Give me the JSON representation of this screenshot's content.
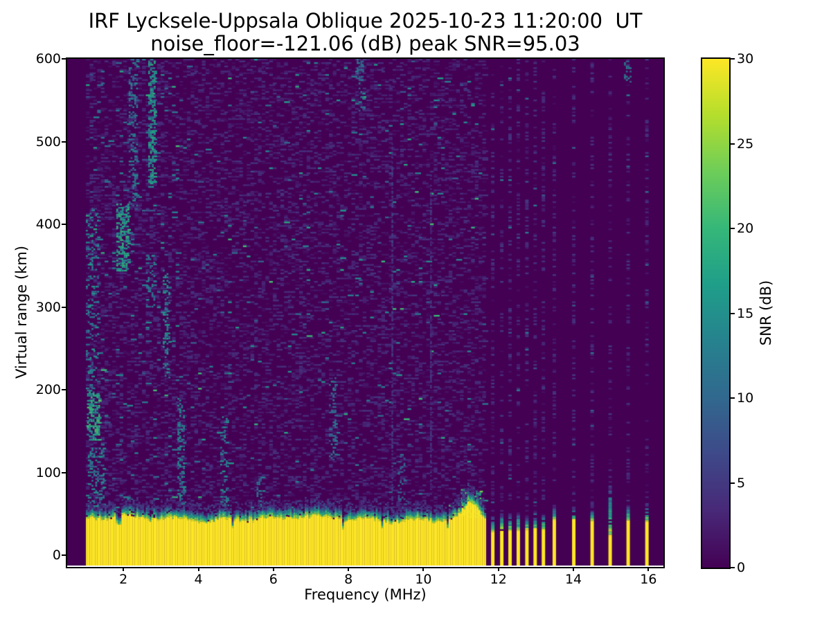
{
  "window": {
    "background": "#ffffff"
  },
  "chart_data": {
    "type": "heatmap",
    "title": "IRF Lycksele-Uppsala Oblique 2025-10-23 11:20:00  UT",
    "subtitle": "noise_floor=-121.06 (dB) peak SNR=95.03",
    "xlabel": "Frequency (MHz)",
    "ylabel": "Virtual range (km)",
    "xlim": [
      0.5,
      16.4
    ],
    "ylim": [
      -12.5,
      600
    ],
    "x_ticks": [
      2,
      4,
      6,
      8,
      10,
      12,
      14,
      16
    ],
    "y_ticks": [
      0,
      100,
      200,
      300,
      400,
      500,
      600
    ],
    "grid": false,
    "legend": "none",
    "noise_floor_db": -121.06,
    "peak_snr_db": 95.03,
    "colorbar": {
      "label": "SNR (dB)",
      "min": 0,
      "max": 30,
      "ticks": [
        0,
        5,
        10,
        15,
        20,
        25,
        30
      ],
      "position": "right"
    },
    "colormap": {
      "name": "viridis",
      "stops": [
        "#440154",
        "#482878",
        "#3e4989",
        "#31688e",
        "#26828e",
        "#1f9e89",
        "#35b779",
        "#6dcd59",
        "#b4de2c",
        "#fde725"
      ]
    },
    "background_snr_db": 0,
    "sweep": {
      "continuous_range_mhz": [
        1.0,
        11.63
      ],
      "ground_band": {
        "top_km_mean": 44,
        "fringe_km": 14,
        "snr_db": 30,
        "hump": {
          "center_mhz": 11.25,
          "extra_km": 18,
          "width_mhz": 0.25
        }
      },
      "stepped_bars": [
        {
          "f": 11.85,
          "top_km": 30,
          "cap_km": 46
        },
        {
          "f": 12.09,
          "top_km": 31,
          "cap_km": 50
        },
        {
          "f": 12.31,
          "top_km": 29,
          "cap_km": 47
        },
        {
          "f": 12.53,
          "top_km": 30,
          "cap_km": 52
        },
        {
          "f": 12.76,
          "top_km": 30,
          "cap_km": 48
        },
        {
          "f": 12.98,
          "top_km": 31,
          "cap_km": 46
        },
        {
          "f": 13.2,
          "top_km": 30,
          "cap_km": 50
        },
        {
          "f": 13.49,
          "top_km": 42,
          "cap_km": 58
        },
        {
          "f": 14.01,
          "top_km": 42,
          "cap_km": 56
        },
        {
          "f": 14.5,
          "top_km": 41,
          "cap_km": 55
        },
        {
          "f": 14.98,
          "top_km": 22,
          "cap_km": 85
        },
        {
          "f": 15.46,
          "top_km": 42,
          "cap_km": 60
        },
        {
          "f": 15.96,
          "top_km": 40,
          "cap_km": 62
        }
      ]
    },
    "echo_traces": [
      {
        "f": [
          1.03,
          1.36
        ],
        "km": [
          140,
          200
        ],
        "density": 0.55,
        "snr": [
          12,
          22
        ]
      },
      {
        "f": [
          1.0,
          1.3
        ],
        "km": [
          200,
          420
        ],
        "density": 0.17,
        "snr": [
          8,
          16
        ]
      },
      {
        "f": [
          1.05,
          1.45
        ],
        "km": [
          55,
          130
        ],
        "density": 0.28,
        "snr": [
          8,
          16
        ]
      },
      {
        "f": [
          1.81,
          2.11
        ],
        "km": [
          345,
          425
        ],
        "density": 0.5,
        "snr": [
          13,
          20
        ]
      },
      {
        "f": [
          2.14,
          2.34
        ],
        "km": [
          420,
          600
        ],
        "density": 0.3,
        "snr": [
          8,
          15
        ]
      },
      {
        "f": [
          2.66,
          2.82
        ],
        "km": [
          445,
          600
        ],
        "density": 0.5,
        "snr": [
          11,
          19
        ]
      },
      {
        "f": [
          2.6,
          2.8
        ],
        "km": [
          300,
          365
        ],
        "density": 0.22,
        "snr": [
          9,
          15
        ]
      },
      {
        "f": [
          3.05,
          3.24
        ],
        "km": [
          215,
          345
        ],
        "density": 0.3,
        "snr": [
          11,
          17
        ]
      },
      {
        "f": [
          3.44,
          3.6
        ],
        "km": [
          56,
          190
        ],
        "density": 0.32,
        "snr": [
          9,
          16
        ]
      },
      {
        "f": [
          4.58,
          4.74
        ],
        "km": [
          50,
          170
        ],
        "density": 0.28,
        "snr": [
          9,
          16
        ]
      },
      {
        "f": [
          5.55,
          5.72
        ],
        "km": [
          48,
          95
        ],
        "density": 0.33,
        "snr": [
          8,
          14
        ]
      },
      {
        "f": [
          7.48,
          7.66
        ],
        "km": [
          115,
          215
        ],
        "density": 0.22,
        "snr": [
          8,
          14
        ]
      },
      {
        "f": [
          8.22,
          8.4
        ],
        "km": [
          537,
          600
        ],
        "density": 0.3,
        "snr": [
          8,
          14
        ]
      },
      {
        "f": [
          9.32,
          9.5
        ],
        "km": [
          55,
          120
        ],
        "density": 0.28,
        "snr": [
          7,
          12
        ]
      },
      {
        "f": [
          11.0,
          11.5
        ],
        "km": [
          46,
          80
        ],
        "density": 0.55,
        "snr": [
          13,
          24
        ]
      },
      {
        "f": [
          15.35,
          15.52
        ],
        "km": [
          570,
          600
        ],
        "density": 0.35,
        "snr": [
          9,
          14
        ]
      }
    ],
    "rfi_columns": [
      {
        "f": 9.17,
        "km": [
          -5,
          500
        ],
        "density": 0.6,
        "snr": [
          2.5,
          6.5
        ]
      },
      {
        "f": 10.2,
        "km": [
          80,
          460
        ],
        "density": 0.5,
        "snr": [
          2.5,
          6.0
        ]
      }
    ],
    "noise_speckle": {
      "seed": 1337,
      "density": 0.26,
      "snr_range": [
        0.8,
        4.6
      ],
      "teal_density": 0.011,
      "teal_density_low_freq": 0.03,
      "teal_snr_range": [
        7,
        15
      ],
      "green_density": 0.0025,
      "green_snr_range": [
        15,
        21
      ],
      "stepped_column_density": 0.27
    }
  }
}
